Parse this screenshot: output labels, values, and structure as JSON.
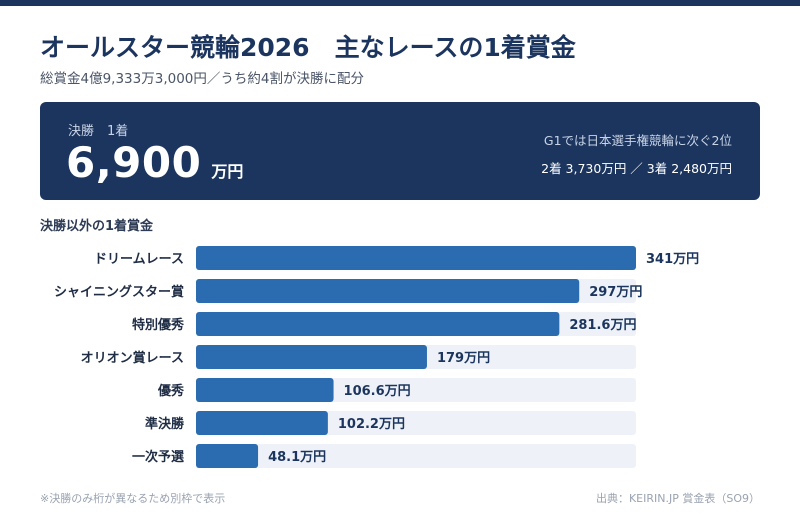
{
  "header": {
    "title": "オールスター競輪2026　主なレースの1着賞金",
    "subtitle": "総賞金4億9,333万3,000円／うち約4割が決勝に配分"
  },
  "hero": {
    "label": "決勝　1着",
    "value": "6,900",
    "unit": "万円",
    "note": "G1では日本選手権競輪に次ぐ2位",
    "sub": "2着 3,730万円 ／ 3着 2,480万円"
  },
  "section_title": "決勝以外の1着賞金",
  "chart_data": {
    "type": "bar",
    "orientation": "horizontal",
    "unit": "万円",
    "categories": [
      "ドリームレース",
      "シャイニングスター賞",
      "特別優秀",
      "オリオン賞レース",
      "優秀",
      "準決勝",
      "一次予選"
    ],
    "values": [
      341,
      297,
      281.6,
      179,
      106.6,
      102.2,
      48.1
    ],
    "labels": [
      "341万円",
      "297万円",
      "281.6万円",
      "179万円",
      "106.6万円",
      "102.2万円",
      "48.1万円"
    ],
    "xlim": [
      0,
      341
    ],
    "colors": {
      "bar": "#2b6cb0",
      "track": "#eef2f8",
      "label": "#1c355e"
    }
  },
  "footer": {
    "note": "※決勝のみ桁が異なるため別枠で表示",
    "source": "出典：KEIRIN.JP 賞金表（SO9）"
  }
}
